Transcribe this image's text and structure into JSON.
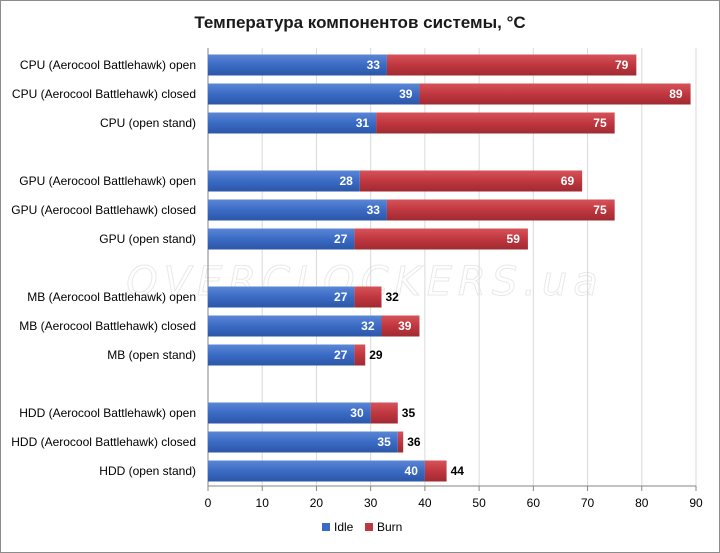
{
  "chart_data": {
    "type": "bar",
    "orientation": "horizontal",
    "stacked_overlay": true,
    "title": "Температура компонентов системы, °C",
    "xlim": [
      0,
      90
    ],
    "xticks": [
      "0",
      "10",
      "20",
      "30",
      "40",
      "50",
      "60",
      "70",
      "80",
      "90"
    ],
    "groups": [
      {
        "categories": [
          "CPU (Aerocool Battlehawk)  open",
          "CPU (Aerocool Battlehawk)  closed",
          "CPU (open stand)"
        ],
        "idle": [
          33,
          39,
          31
        ],
        "burn": [
          79,
          89,
          75
        ]
      },
      {
        "categories": [
          "GPU (Aerocool Battlehawk)  open",
          "GPU (Aerocool Battlehawk)  closed",
          "GPU (open stand)"
        ],
        "idle": [
          28,
          33,
          27
        ],
        "burn": [
          69,
          75,
          59
        ]
      },
      {
        "categories": [
          "MB (Aerocool Battlehawk)  open",
          "MB (Aerocool Battlehawk)  closed",
          "MB (open stand)"
        ],
        "idle": [
          27,
          32,
          27
        ],
        "burn": [
          32,
          39,
          29
        ]
      },
      {
        "categories": [
          "HDD (Aerocool Battlehawk)  open",
          "HDD (Aerocool Battlehawk)  closed",
          "HDD (open stand)"
        ],
        "idle": [
          30,
          35,
          40
        ],
        "burn": [
          35,
          36,
          44
        ]
      }
    ],
    "series": [
      {
        "name": "Idle",
        "color": "#3a6bc4"
      },
      {
        "name": "Burn",
        "color": "#c0373f"
      }
    ],
    "legend": "bottom-center",
    "watermark": "OVERCLOCKERS.ua"
  }
}
